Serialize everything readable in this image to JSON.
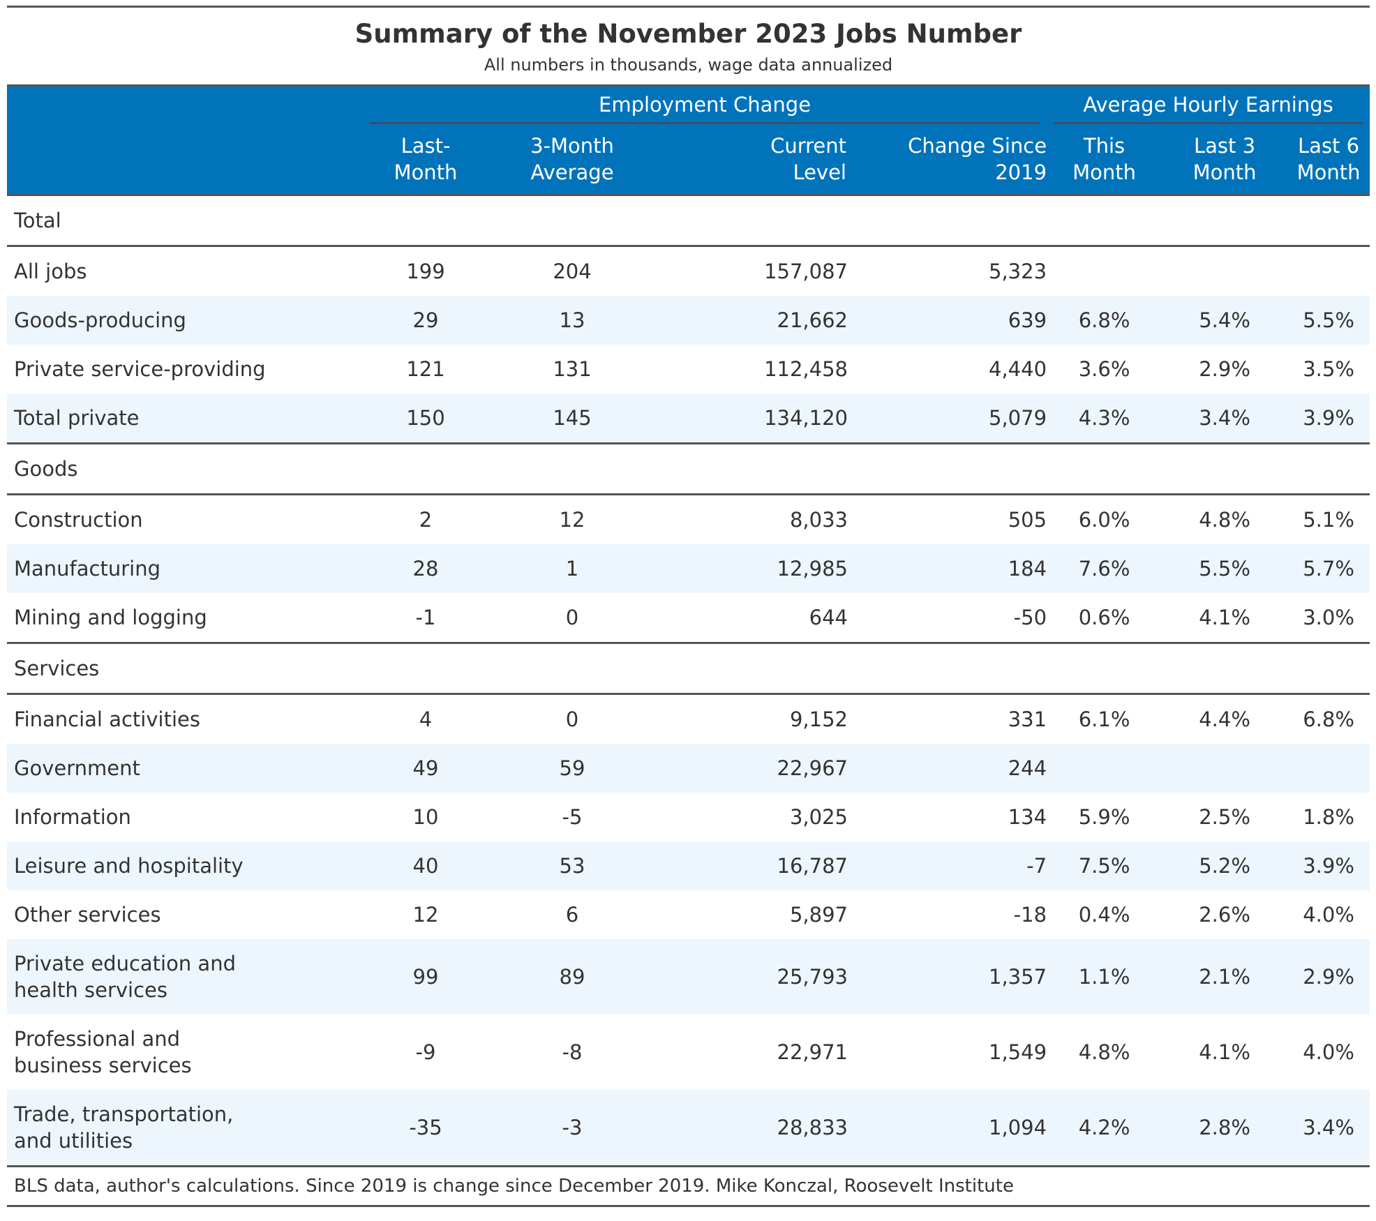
{
  "chart_data": {
    "type": "table",
    "title": "Summary of the November 2023 Jobs Number",
    "subtitle": "All numbers in thousands, wage data annualized",
    "spanners": {
      "employment": "Employment Change",
      "earnings": "Average Hourly Earnings"
    },
    "columns": [
      "Last-Month",
      "3-Month Average",
      "Current Level",
      "Change Since 2019",
      "This Month",
      "Last 3 Month",
      "Last 6 Month"
    ],
    "column_labels": [
      [
        "Last-",
        "Month"
      ],
      [
        "3-Month",
        "Average"
      ],
      [
        "Current",
        "Level"
      ],
      [
        "Change Since",
        "2019"
      ],
      [
        "This",
        "Month"
      ],
      [
        "Last 3",
        "Month"
      ],
      [
        "Last 6",
        "Month"
      ]
    ],
    "groups": [
      {
        "name": "Total",
        "rows": [
          {
            "label": "All jobs",
            "values": [
              "199",
              "204",
              "157,087",
              "5,323",
              "",
              "",
              ""
            ]
          },
          {
            "label": "Goods-producing",
            "values": [
              "29",
              "13",
              "21,662",
              "639",
              "6.8%",
              "5.4%",
              "5.5%"
            ]
          },
          {
            "label": "Private service-providing",
            "values": [
              "121",
              "131",
              "112,458",
              "4,440",
              "3.6%",
              "2.9%",
              "3.5%"
            ]
          },
          {
            "label": "Total private",
            "values": [
              "150",
              "145",
              "134,120",
              "5,079",
              "4.3%",
              "3.4%",
              "3.9%"
            ]
          }
        ]
      },
      {
        "name": "Goods",
        "rows": [
          {
            "label": "Construction",
            "values": [
              "2",
              "12",
              "8,033",
              "505",
              "6.0%",
              "4.8%",
              "5.1%"
            ]
          },
          {
            "label": "Manufacturing",
            "values": [
              "28",
              "1",
              "12,985",
              "184",
              "7.6%",
              "5.5%",
              "5.7%"
            ]
          },
          {
            "label": "Mining and logging",
            "values": [
              "-1",
              "0",
              "644",
              "-50",
              "0.6%",
              "4.1%",
              "3.0%"
            ]
          }
        ]
      },
      {
        "name": "Services",
        "rows": [
          {
            "label": "Financial activities",
            "values": [
              "4",
              "0",
              "9,152",
              "331",
              "6.1%",
              "4.4%",
              "6.8%"
            ]
          },
          {
            "label": "Government",
            "values": [
              "49",
              "59",
              "22,967",
              "244",
              "",
              "",
              ""
            ]
          },
          {
            "label": "Information",
            "values": [
              "10",
              "-5",
              "3,025",
              "134",
              "5.9%",
              "2.5%",
              "1.8%"
            ]
          },
          {
            "label": "Leisure and hospitality",
            "values": [
              "40",
              "53",
              "16,787",
              "-7",
              "7.5%",
              "5.2%",
              "3.9%"
            ]
          },
          {
            "label": "Other services",
            "values": [
              "12",
              "6",
              "5,897",
              "-18",
              "0.4%",
              "2.6%",
              "4.0%"
            ]
          },
          {
            "label": "Private education and health services",
            "values": [
              "99",
              "89",
              "25,793",
              "1,357",
              "1.1%",
              "2.1%",
              "2.9%"
            ]
          },
          {
            "label": "Professional and business services",
            "values": [
              "-9",
              "-8",
              "22,971",
              "1,549",
              "4.8%",
              "4.1%",
              "4.0%"
            ]
          },
          {
            "label": "Trade, transportation, and utilities",
            "values": [
              "-35",
              "-3",
              "28,833",
              "1,094",
              "4.2%",
              "2.8%",
              "3.4%"
            ]
          }
        ]
      }
    ],
    "source_note": "BLS data, author's calculations. Since 2019 is change since December 2019. Mike Konczal, Roosevelt Institute"
  },
  "colors": {
    "header_bg": "#0073bb",
    "header_text": "#ffffff",
    "stripe": "#eef6fd",
    "rule": "#555555",
    "text": "#333333"
  }
}
